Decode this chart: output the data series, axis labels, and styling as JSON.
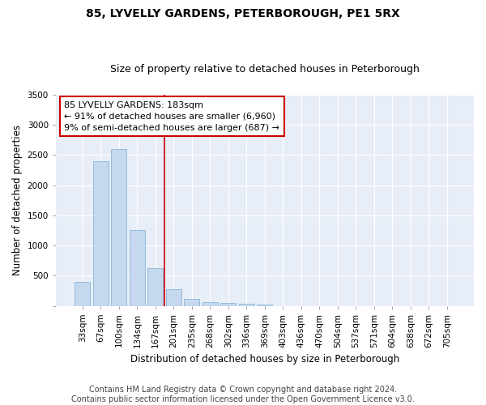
{
  "title": "85, LYVELLY GARDENS, PETERBOROUGH, PE1 5RX",
  "subtitle": "Size of property relative to detached houses in Peterborough",
  "xlabel": "Distribution of detached houses by size in Peterborough",
  "ylabel": "Number of detached properties",
  "footer_line1": "Contains HM Land Registry data © Crown copyright and database right 2024.",
  "footer_line2": "Contains public sector information licensed under the Open Government Licence v3.0.",
  "categories": [
    "33sqm",
    "67sqm",
    "100sqm",
    "134sqm",
    "167sqm",
    "201sqm",
    "235sqm",
    "268sqm",
    "302sqm",
    "336sqm",
    "369sqm",
    "403sqm",
    "436sqm",
    "470sqm",
    "504sqm",
    "537sqm",
    "571sqm",
    "604sqm",
    "638sqm",
    "672sqm",
    "705sqm"
  ],
  "values": [
    400,
    2400,
    2600,
    1250,
    630,
    270,
    110,
    55,
    45,
    30,
    15,
    0,
    0,
    0,
    0,
    0,
    0,
    0,
    0,
    0,
    0
  ],
  "bar_color": "#c5d8ee",
  "bar_edgecolor": "#7aaed4",
  "vline_x": 4.5,
  "vline_color": "#cc0000",
  "annotation_text": "85 LYVELLY GARDENS: 183sqm\n← 91% of detached houses are smaller (6,960)\n9% of semi-detached houses are larger (687) →",
  "annotation_box_edgecolor": "#cc0000",
  "ylim": [
    0,
    3500
  ],
  "yticks": [
    0,
    500,
    1000,
    1500,
    2000,
    2500,
    3000,
    3500
  ],
  "plot_bg_color": "#e8eef8",
  "title_fontsize": 10,
  "subtitle_fontsize": 9,
  "axis_label_fontsize": 8.5,
  "tick_fontsize": 7.5,
  "annotation_fontsize": 8,
  "footer_fontsize": 7
}
